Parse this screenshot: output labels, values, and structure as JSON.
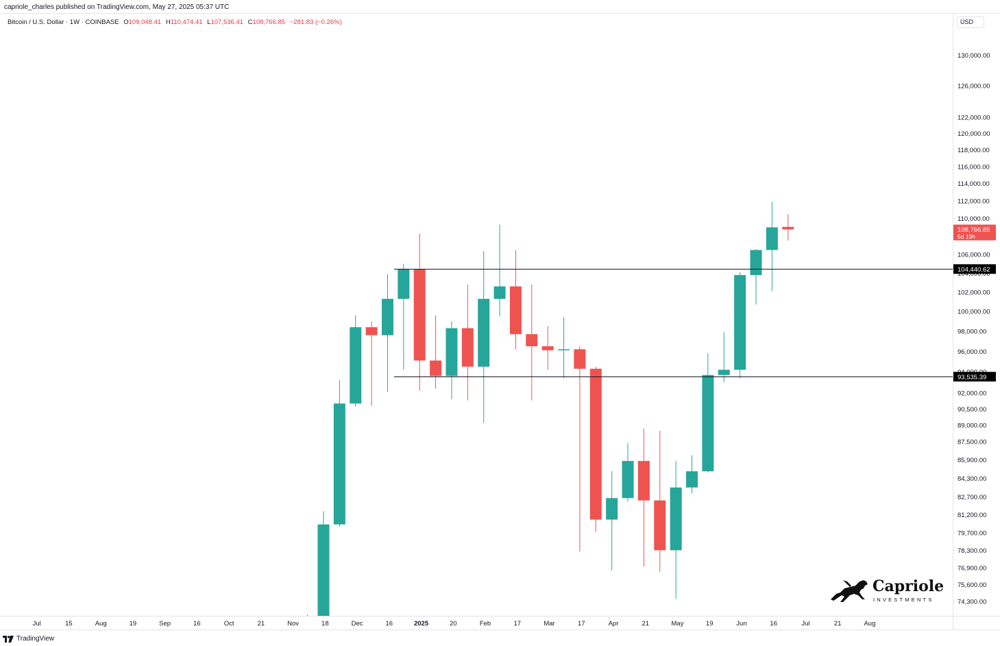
{
  "header": {
    "published_text": "capriole_charles published on TradingView.com, May 27, 2025 05:37 UTC"
  },
  "legend": {
    "symbol": "Bitcoin / U.S. Dollar · 1W · COINBASE",
    "open_label": "O",
    "open_value": "109,048.41",
    "high_label": "H",
    "high_value": "110,474.41",
    "low_label": "L",
    "low_value": "107,536.41",
    "close_label": "C",
    "close_value": "108,766.85",
    "change": "−281.83 (−0.26%)"
  },
  "axis": {
    "currency": "USD"
  },
  "footer": {
    "logo_icon": "tradingview-logo-icon",
    "brand": "TradingView"
  },
  "watermark": {
    "name": "Capriole",
    "sub": "INVESTMENTS",
    "icon": "horse-icon"
  },
  "colors": {
    "up": "#26a69a",
    "down": "#ef5350",
    "line": "#131722",
    "grid_border": "#e0e3eb",
    "badge_current": "#ef5350",
    "badge_level": "#000000"
  },
  "chart_data": {
    "type": "candlestick",
    "scale": "log",
    "title": "Bitcoin / U.S. Dollar · 1W · COINBASE",
    "ylabel": "USD",
    "ylim": [
      73500,
      138000
    ],
    "y_ticks": [
      "130,000.00",
      "126,000.00",
      "122,000.00",
      "120,000.00",
      "118,000.00",
      "116,000.00",
      "114,000.00",
      "112,000.00",
      "110,000.00",
      "106,000.00",
      "104,000.00",
      "102,000.00",
      "100,000.00",
      "98,000.00",
      "96,000.00",
      "94,000.00",
      "92,000.00",
      "90,500.00",
      "89,000.00",
      "87,500.00",
      "85,900.00",
      "84,300.00",
      "82,700.00",
      "81,200.00",
      "79,700.00",
      "78,300.00",
      "76,900.00",
      "75,600.00",
      "74,300.00"
    ],
    "x_ticks": [
      {
        "label": "Jul",
        "bold": false,
        "week": -17.9
      },
      {
        "label": "15",
        "bold": false,
        "week": -15.9
      },
      {
        "label": "Aug",
        "bold": false,
        "week": -13.9
      },
      {
        "label": "19",
        "bold": false,
        "week": -11.9
      },
      {
        "label": "Sep",
        "bold": false,
        "week": -9.9
      },
      {
        "label": "16",
        "bold": false,
        "week": -7.9
      },
      {
        "label": "Oct",
        "bold": false,
        "week": -5.9
      },
      {
        "label": "21",
        "bold": false,
        "week": -3.9
      },
      {
        "label": "Nov",
        "bold": false,
        "week": -1.9
      },
      {
        "label": "18",
        "bold": false,
        "week": 0.1
      },
      {
        "label": "Dec",
        "bold": false,
        "week": 2.1
      },
      {
        "label": "16",
        "bold": false,
        "week": 4.1
      },
      {
        "label": "2025",
        "bold": true,
        "week": 6.1
      },
      {
        "label": "20",
        "bold": false,
        "week": 8.1
      },
      {
        "label": "Feb",
        "bold": false,
        "week": 10.1
      },
      {
        "label": "17",
        "bold": false,
        "week": 12.1
      },
      {
        "label": "Mar",
        "bold": false,
        "week": 14.1
      },
      {
        "label": "17",
        "bold": false,
        "week": 16.1
      },
      {
        "label": "Apr",
        "bold": false,
        "week": 18.1
      },
      {
        "label": "21",
        "bold": false,
        "week": 20.1
      },
      {
        "label": "May",
        "bold": false,
        "week": 22.1
      },
      {
        "label": "19",
        "bold": false,
        "week": 24.1
      },
      {
        "label": "Jun",
        "bold": false,
        "week": 26.1
      },
      {
        "label": "16",
        "bold": false,
        "week": 28.1
      },
      {
        "label": "Jul",
        "bold": false,
        "week": 30.1
      },
      {
        "label": "21",
        "bold": false,
        "week": 32.1
      },
      {
        "label": "Aug",
        "bold": false,
        "week": 34.1
      }
    ],
    "candles": [
      {
        "week": -1,
        "o": 72000,
        "h": 73300,
        "l": 69000,
        "c": 72200
      },
      {
        "week": 0,
        "o": 72300,
        "h": 81500,
        "l": 71500,
        "c": 80400
      },
      {
        "week": 1,
        "o": 80400,
        "h": 93200,
        "l": 80200,
        "c": 91000
      },
      {
        "week": 2,
        "o": 91000,
        "h": 99600,
        "l": 90700,
        "c": 98400
      },
      {
        "week": 3,
        "o": 98400,
        "h": 99000,
        "l": 90800,
        "c": 97600
      },
      {
        "week": 4,
        "o": 97600,
        "h": 103900,
        "l": 92100,
        "c": 101300
      },
      {
        "week": 5,
        "o": 101300,
        "h": 105000,
        "l": 94200,
        "c": 104400
      },
      {
        "week": 6,
        "o": 104400,
        "h": 108300,
        "l": 92200,
        "c": 95100
      },
      {
        "week": 7,
        "o": 95100,
        "h": 99600,
        "l": 92400,
        "c": 93600
      },
      {
        "week": 8,
        "o": 93600,
        "h": 99000,
        "l": 91400,
        "c": 98300
      },
      {
        "week": 9,
        "o": 98300,
        "h": 102800,
        "l": 91300,
        "c": 94500
      },
      {
        "week": 10,
        "o": 94500,
        "h": 106400,
        "l": 89200,
        "c": 101300
      },
      {
        "week": 11,
        "o": 101300,
        "h": 109300,
        "l": 99500,
        "c": 102600
      },
      {
        "week": 12,
        "o": 102600,
        "h": 106500,
        "l": 96200,
        "c": 97700
      },
      {
        "week": 13,
        "o": 97700,
        "h": 102800,
        "l": 91300,
        "c": 96500
      },
      {
        "week": 14,
        "o": 96500,
        "h": 98500,
        "l": 94200,
        "c": 96100
      },
      {
        "week": 15,
        "o": 96100,
        "h": 99400,
        "l": 93400,
        "c": 96200
      },
      {
        "week": 16,
        "o": 96200,
        "h": 96500,
        "l": 78200,
        "c": 94300
      },
      {
        "week": 17,
        "o": 94300,
        "h": 94500,
        "l": 79800,
        "c": 80800
      },
      {
        "week": 18,
        "o": 80800,
        "h": 84900,
        "l": 76700,
        "c": 82600
      },
      {
        "week": 19,
        "o": 82600,
        "h": 87400,
        "l": 82300,
        "c": 85800
      },
      {
        "week": 20,
        "o": 85800,
        "h": 88700,
        "l": 77000,
        "c": 82400
      },
      {
        "week": 21,
        "o": 82400,
        "h": 88500,
        "l": 76600,
        "c": 78300
      },
      {
        "week": 22,
        "o": 78300,
        "h": 85800,
        "l": 74500,
        "c": 83500
      },
      {
        "week": 23,
        "o": 83500,
        "h": 86300,
        "l": 83000,
        "c": 84900
      },
      {
        "week": 24,
        "o": 84900,
        "h": 95800,
        "l": 84800,
        "c": 93700
      },
      {
        "week": 25,
        "o": 93700,
        "h": 97900,
        "l": 93000,
        "c": 94200
      },
      {
        "week": 26,
        "o": 94200,
        "h": 104100,
        "l": 93400,
        "c": 103800
      },
      {
        "week": 27,
        "o": 103800,
        "h": 106600,
        "l": 100700,
        "c": 106500
      },
      {
        "week": 28,
        "o": 106500,
        "h": 111900,
        "l": 102100,
        "c": 109000
      },
      {
        "week": 29,
        "o": 109048.41,
        "h": 110474.41,
        "l": 107536.41,
        "c": 108766.85
      }
    ],
    "horizontal_lines": [
      {
        "value": 104440.62,
        "label": "104,440.62"
      },
      {
        "value": 93535.39,
        "label": "93,535.39"
      }
    ],
    "current_price": {
      "value": 108766.85,
      "label": "108,766.85",
      "countdown": "5d 19h"
    }
  }
}
